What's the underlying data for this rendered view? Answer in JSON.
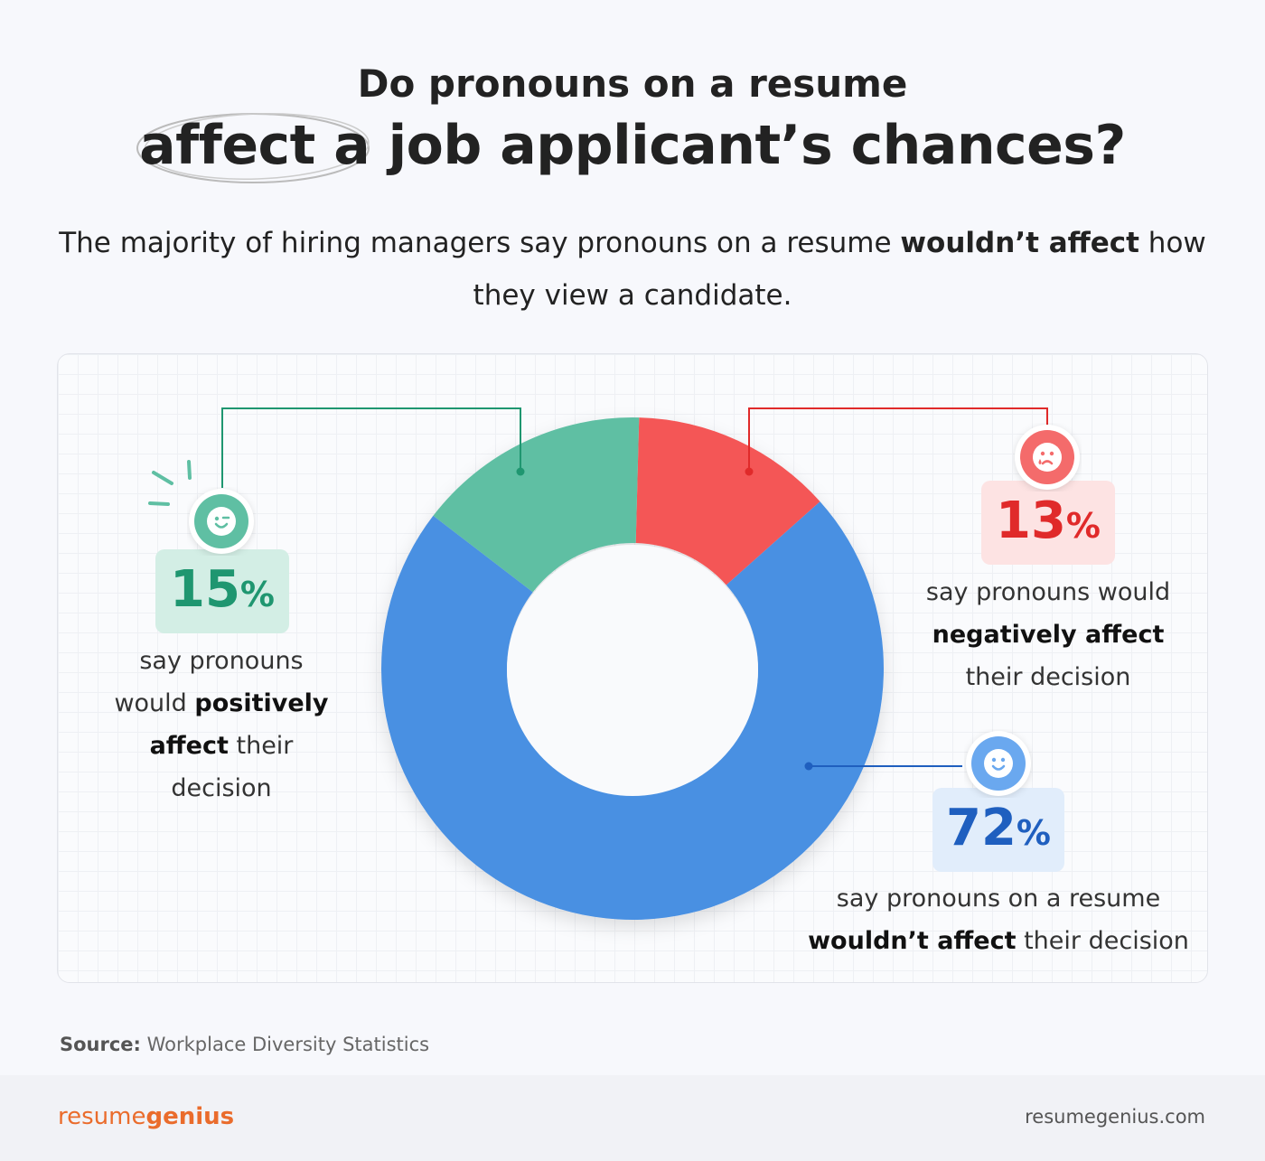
{
  "header": {
    "title_line1": "Do pronouns on a resume",
    "title_line2": "affect a job applicant’s chances?",
    "subtitle_pre": "The majority of hiring managers say pronouns on a resume ",
    "subtitle_bold": "wouldn’t affect",
    "subtitle_post": " how they view a candidate."
  },
  "chart_data": {
    "type": "pie",
    "donut": true,
    "categories": [
      "Negatively affect",
      "Wouldn't affect",
      "Positively affect"
    ],
    "values": [
      13,
      72,
      15
    ],
    "colors": [
      "#f45757",
      "#4a90e2",
      "#5fbfa3"
    ],
    "labels": [
      {
        "value": "13",
        "unit": "%",
        "pre": "say pronouns would ",
        "bold": "negatively affect",
        "post": " their decision",
        "color": "#e02a2a",
        "bg": "#fde3e3",
        "icon": "sad-face-icon"
      },
      {
        "value": "72",
        "unit": "%",
        "pre": "say pronouns on a resume ",
        "bold": "wouldn’t affect",
        "post": " their decision",
        "color": "#1f5fbf",
        "bg": "#e1edfb",
        "icon": "smile-face-icon"
      },
      {
        "value": "15",
        "unit": "%",
        "pre": "say pronouns would ",
        "bold": "positively affect",
        "post": " their decision",
        "color": "#1f9670",
        "bg": "#d3eee5",
        "icon": "wink-face-icon"
      }
    ]
  },
  "source": {
    "label": "Source:",
    "text": " Workplace Diversity Statistics"
  },
  "footer": {
    "logo_light": "resume",
    "logo_bold": "genius",
    "url": "resumegenius.com"
  }
}
